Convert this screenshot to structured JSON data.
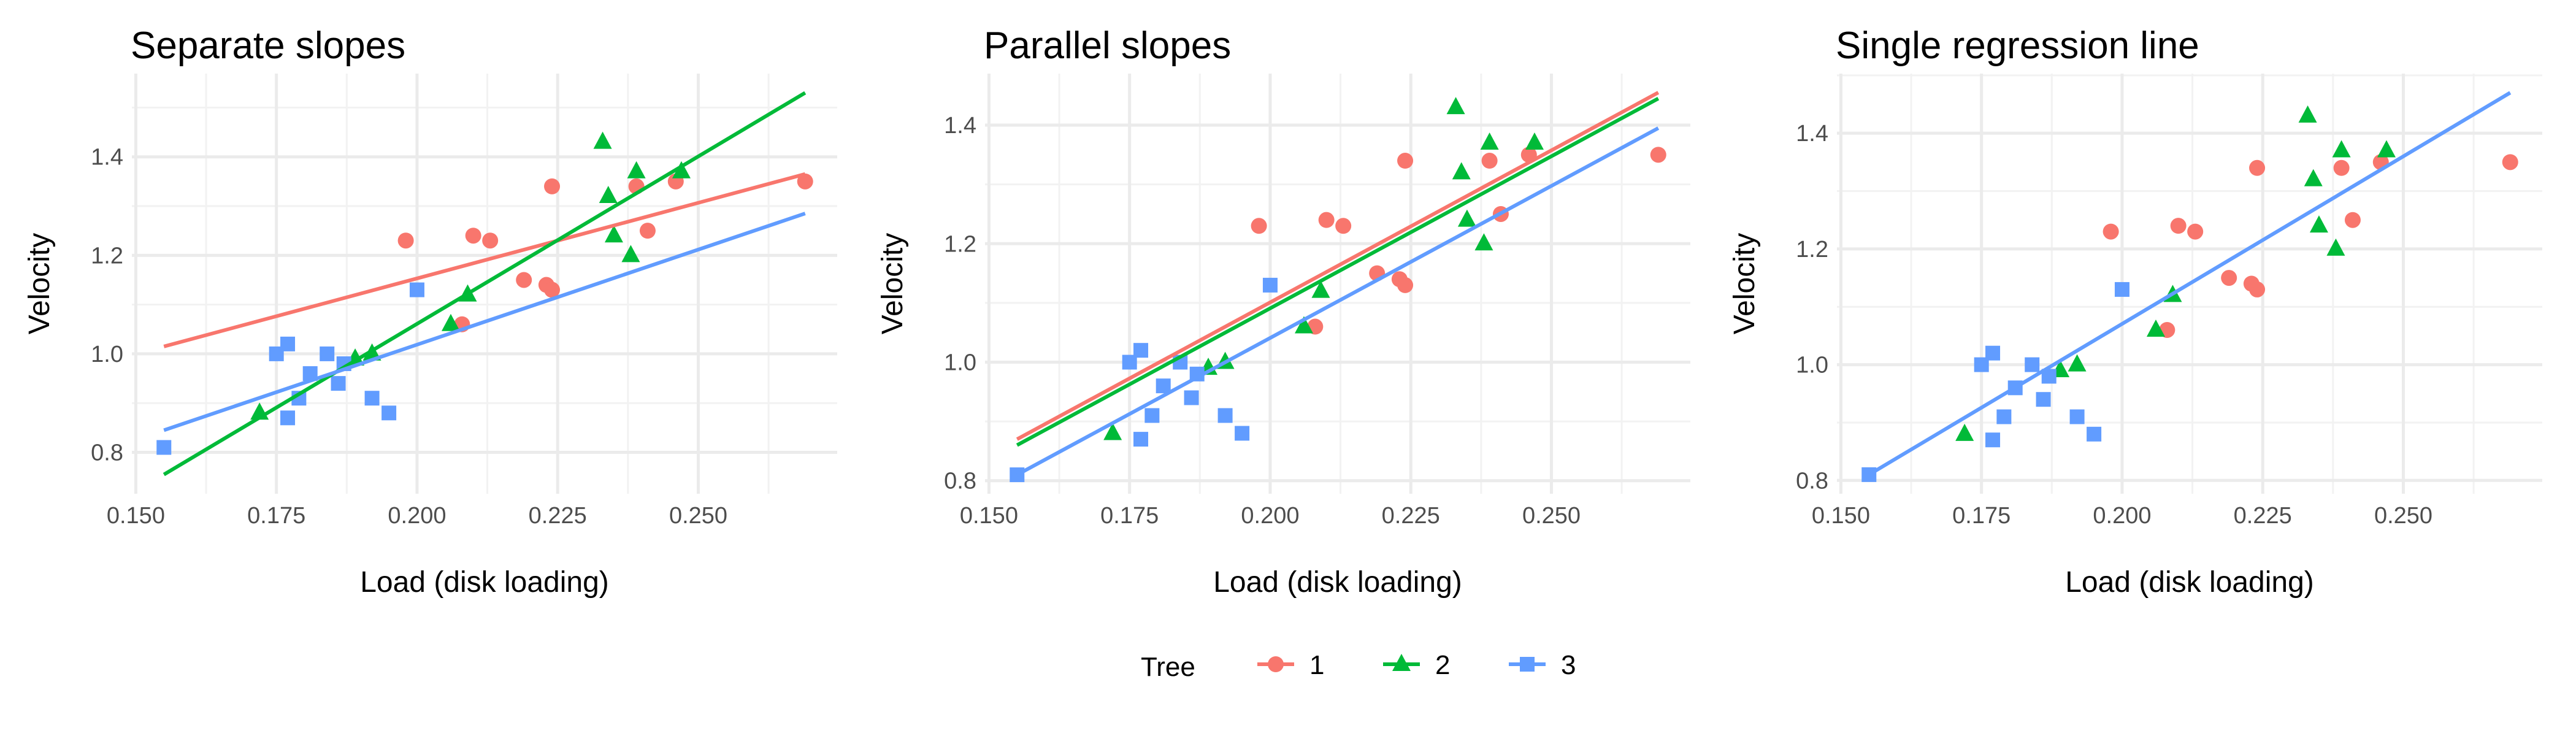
{
  "chart_data": [
    {
      "type": "scatter",
      "title": "Separate slopes",
      "xlabel": "Load (disk loading)",
      "ylabel": "Velocity",
      "xlim": [
        0.1493,
        0.2747
      ],
      "ylim": [
        0.716,
        1.569
      ],
      "xticks": [
        "0.150",
        "0.175",
        "0.200",
        "0.225",
        "0.250"
      ],
      "yticks": [
        "0.8",
        "1.0",
        "1.2",
        "1.4"
      ],
      "grid": true,
      "lines": [
        {
          "series": "1",
          "x": [
            0.155,
            0.269
          ],
          "y": [
            1.015,
            1.365
          ]
        },
        {
          "series": "2",
          "x": [
            0.155,
            0.269
          ],
          "y": [
            0.755,
            1.53
          ]
        },
        {
          "series": "3",
          "x": [
            0.155,
            0.269
          ],
          "y": [
            0.845,
            1.285
          ]
        }
      ]
    },
    {
      "type": "scatter",
      "title": "Parallel slopes",
      "xlabel": "Load (disk loading)",
      "ylabel": "Velocity",
      "xlim": [
        0.1493,
        0.2747
      ],
      "ylim": [
        0.778,
        1.487
      ],
      "xticks": [
        "0.150",
        "0.175",
        "0.200",
        "0.225",
        "0.250"
      ],
      "yticks": [
        "0.8",
        "1.0",
        "1.2",
        "1.4"
      ],
      "grid": true,
      "lines": [
        {
          "series": "1",
          "x": [
            0.155,
            0.269
          ],
          "y": [
            0.87,
            1.455
          ]
        },
        {
          "series": "2",
          "x": [
            0.155,
            0.269
          ],
          "y": [
            0.86,
            1.445
          ]
        },
        {
          "series": "3",
          "x": [
            0.155,
            0.269
          ],
          "y": [
            0.81,
            1.395
          ]
        }
      ]
    },
    {
      "type": "scatter",
      "title": "Single regression line",
      "xlabel": "Load (disk loading)",
      "ylabel": "Velocity",
      "xlim": [
        0.1493,
        0.2747
      ],
      "ylim": [
        0.777,
        1.503
      ],
      "xticks": [
        "0.150",
        "0.175",
        "0.200",
        "0.225",
        "0.250"
      ],
      "yticks": [
        "0.8",
        "1.0",
        "1.2",
        "1.4"
      ],
      "grid": true,
      "lines": [
        {
          "series": "all",
          "x": [
            0.155,
            0.269
          ],
          "y": [
            0.81,
            1.47
          ]
        }
      ]
    }
  ],
  "series": [
    {
      "name": "1",
      "shape": "circle",
      "color": "#F8766D",
      "x": [
        0.198,
        0.208,
        0.21,
        0.213,
        0.219,
        0.223,
        0.224,
        0.224,
        0.239,
        0.241,
        0.246,
        0.269
      ],
      "y": [
        1.23,
        1.06,
        1.24,
        1.23,
        1.15,
        1.14,
        1.13,
        1.34,
        1.34,
        1.25,
        1.35,
        1.35
      ]
    },
    {
      "name": "2",
      "shape": "triangle",
      "color": "#00BA38",
      "x": [
        0.172,
        0.189,
        0.192,
        0.206,
        0.209,
        0.233,
        0.234,
        0.235,
        0.238,
        0.239,
        0.247
      ],
      "y": [
        0.88,
        0.99,
        1.0,
        1.06,
        1.12,
        1.43,
        1.32,
        1.24,
        1.2,
        1.37,
        1.37
      ]
    },
    {
      "name": "3",
      "shape": "square",
      "color": "#619CFF",
      "x": [
        0.155,
        0.175,
        0.177,
        0.177,
        0.179,
        0.181,
        0.184,
        0.186,
        0.187,
        0.192,
        0.195,
        0.2
      ],
      "y": [
        0.81,
        1.0,
        1.02,
        0.87,
        0.91,
        0.96,
        1.0,
        0.94,
        0.98,
        0.91,
        0.88,
        1.13
      ]
    }
  ],
  "legend": {
    "title": "Tree",
    "placement": "bottom",
    "labels": [
      "1",
      "2",
      "3"
    ]
  }
}
